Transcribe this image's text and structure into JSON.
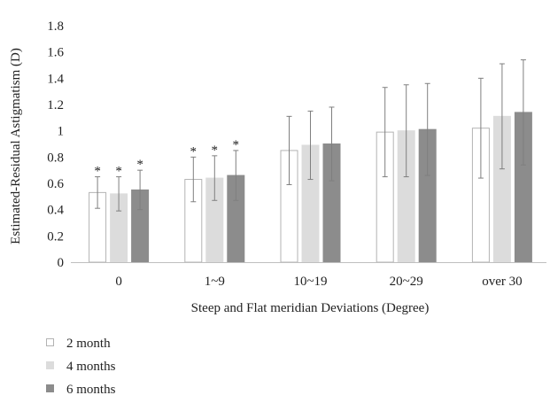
{
  "chart_data": {
    "type": "bar",
    "xlabel": "Steep and Flat meridian Deviations (Degree)",
    "ylabel": "Estimated-Residual Astigmatism (D)",
    "ylim": [
      0,
      1.8
    ],
    "yticks": [
      "0",
      "0.2",
      "0.4",
      "0.6",
      "0.8",
      "1",
      "1.2",
      "1.4",
      "1.6",
      "1.8"
    ],
    "ytick_values": [
      0,
      0.2,
      0.4,
      0.6,
      0.8,
      1.0,
      1.2,
      1.4,
      1.6,
      1.8
    ],
    "categories": [
      "0",
      "1~9",
      "10~19",
      "20~29",
      "over 30"
    ],
    "grid": false,
    "legend_position": "bottom-left",
    "series": [
      {
        "name": "2 month",
        "fill": "#ffffff",
        "stroke": "#b3b3b3",
        "values": [
          0.53,
          0.63,
          0.85,
          0.99,
          1.02
        ],
        "error": [
          0.12,
          0.17,
          0.26,
          0.34,
          0.38
        ],
        "significance": [
          "*",
          "*",
          "",
          "",
          ""
        ]
      },
      {
        "name": "4 months",
        "fill": "#dcdcdc",
        "stroke": "#dcdcdc",
        "values": [
          0.52,
          0.64,
          0.89,
          1.0,
          1.11
        ],
        "error": [
          0.13,
          0.17,
          0.26,
          0.35,
          0.4
        ],
        "significance": [
          "*",
          "*",
          "",
          "",
          ""
        ]
      },
      {
        "name": "6 months",
        "fill": "#8c8c8c",
        "stroke": "#8c8c8c",
        "values": [
          0.55,
          0.66,
          0.9,
          1.01,
          1.14
        ],
        "error": [
          0.15,
          0.19,
          0.28,
          0.35,
          0.4
        ],
        "significance": [
          "*",
          "*",
          "",
          "",
          ""
        ]
      }
    ]
  }
}
